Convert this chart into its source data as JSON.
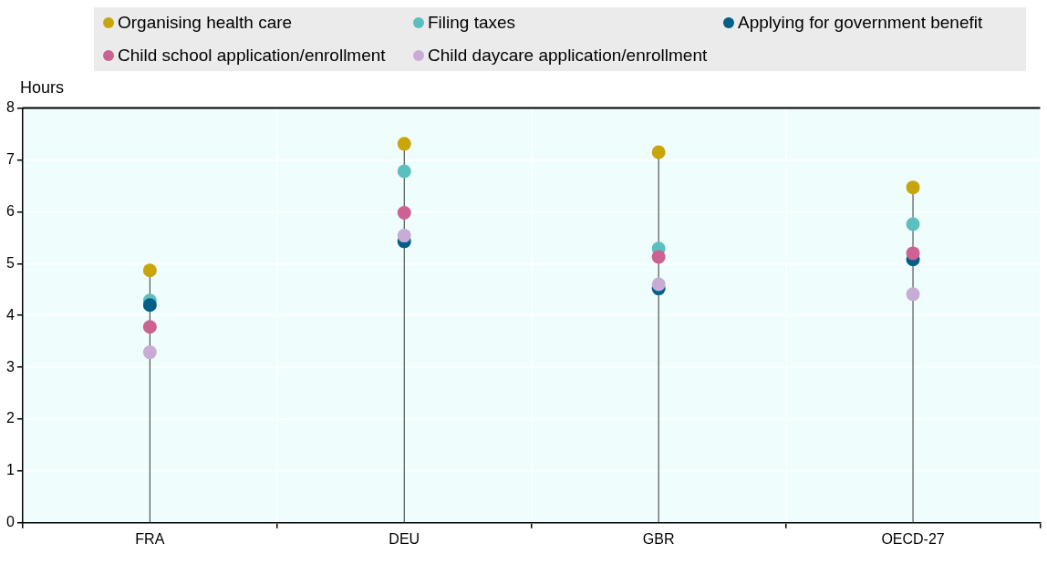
{
  "chart_data": {
    "type": "scatter",
    "ylabel": "Hours",
    "categories": [
      "FRA",
      "DEU",
      "GBR",
      "OECD-27"
    ],
    "series": [
      {
        "name": "Organising health care",
        "color": "#c9a50c",
        "values": [
          4.87,
          7.31,
          7.15,
          6.47
        ]
      },
      {
        "name": "Filing taxes",
        "color": "#5bbfbf",
        "values": [
          4.29,
          6.78,
          5.29,
          5.76
        ]
      },
      {
        "name": "Applying for government benefit",
        "color": "#005f87",
        "values": [
          4.2,
          5.43,
          4.52,
          5.08
        ]
      },
      {
        "name": "Child school application/enrollment",
        "color": "#cc6192",
        "values": [
          3.78,
          5.98,
          5.13,
          5.2
        ]
      },
      {
        "name": "Child daycare application/enrollment",
        "color": "#c9acd6",
        "values": [
          3.29,
          5.54,
          4.6,
          4.41
        ]
      }
    ],
    "ylim": [
      0,
      8
    ],
    "yticks": [
      0,
      1,
      2,
      3,
      4,
      5,
      6,
      7,
      8
    ],
    "grid": true,
    "legend": "top",
    "marker": "circle"
  }
}
